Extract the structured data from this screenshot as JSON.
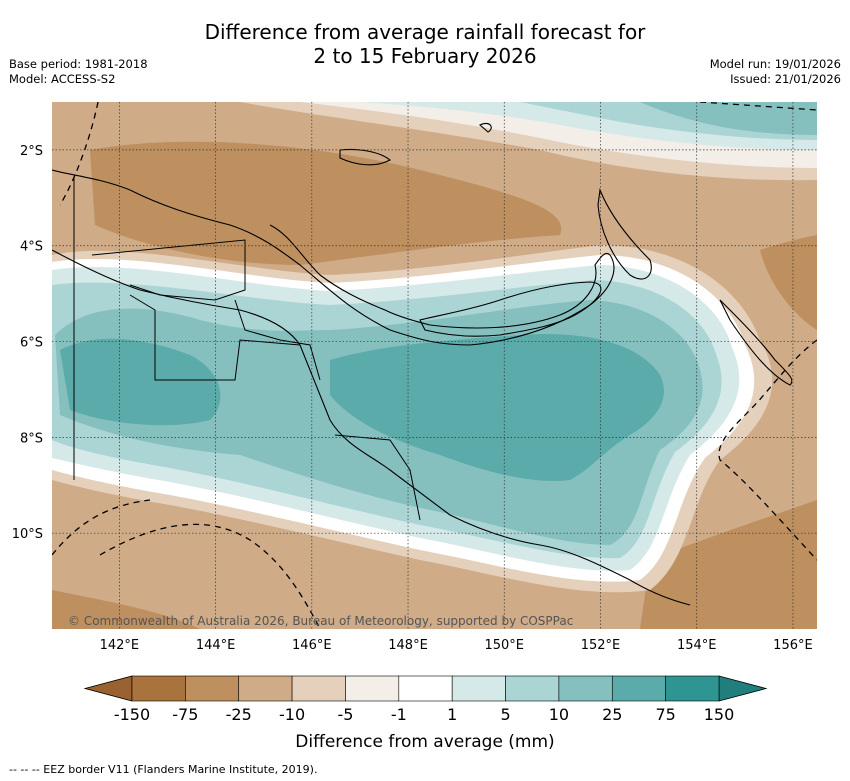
{
  "title": {
    "line1": "Difference from average rainfall forecast for",
    "line2": "2 to 15 February 2026"
  },
  "meta_left": {
    "base_period": "Base period: 1981-2018",
    "model": "Model: ACCESS-S2"
  },
  "meta_right": {
    "model_run": "Model run: 19/01/2026",
    "issued": "Issued: 21/01/2026"
  },
  "map": {
    "lon_range": [
      140.6,
      156.5
    ],
    "lat_range": [
      -1.0,
      -12.0
    ],
    "lat_labels": [
      "2°S",
      "4°S",
      "6°S",
      "8°S",
      "10°S"
    ],
    "lon_labels": [
      "142°E",
      "144°E",
      "146°E",
      "148°E",
      "150°E",
      "152°E",
      "154°E",
      "156°E"
    ],
    "copyright": "© Commonwealth of Australia 2026, Bureau of Meteorology, supported by COSPPac"
  },
  "colorbar": {
    "ticks": [
      "-150",
      "-75",
      "-25",
      "-10",
      "-5",
      "-1",
      "1",
      "5",
      "10",
      "25",
      "75",
      "150"
    ],
    "colors": [
      "#a8733c",
      "#be8f5f",
      "#cfab88",
      "#e5d0bb",
      "#f3eee8",
      "#ffffff",
      "#d4e9e8",
      "#aad5d4",
      "#85c0bf",
      "#5aabaa",
      "#2f9592"
    ],
    "under_color": "#9a6230",
    "over_color": "#207f7c",
    "label": "Difference from average (mm)"
  },
  "footnote": "-- -- -- EEZ border V11 (Flanders Marine Institute, 2019)."
}
